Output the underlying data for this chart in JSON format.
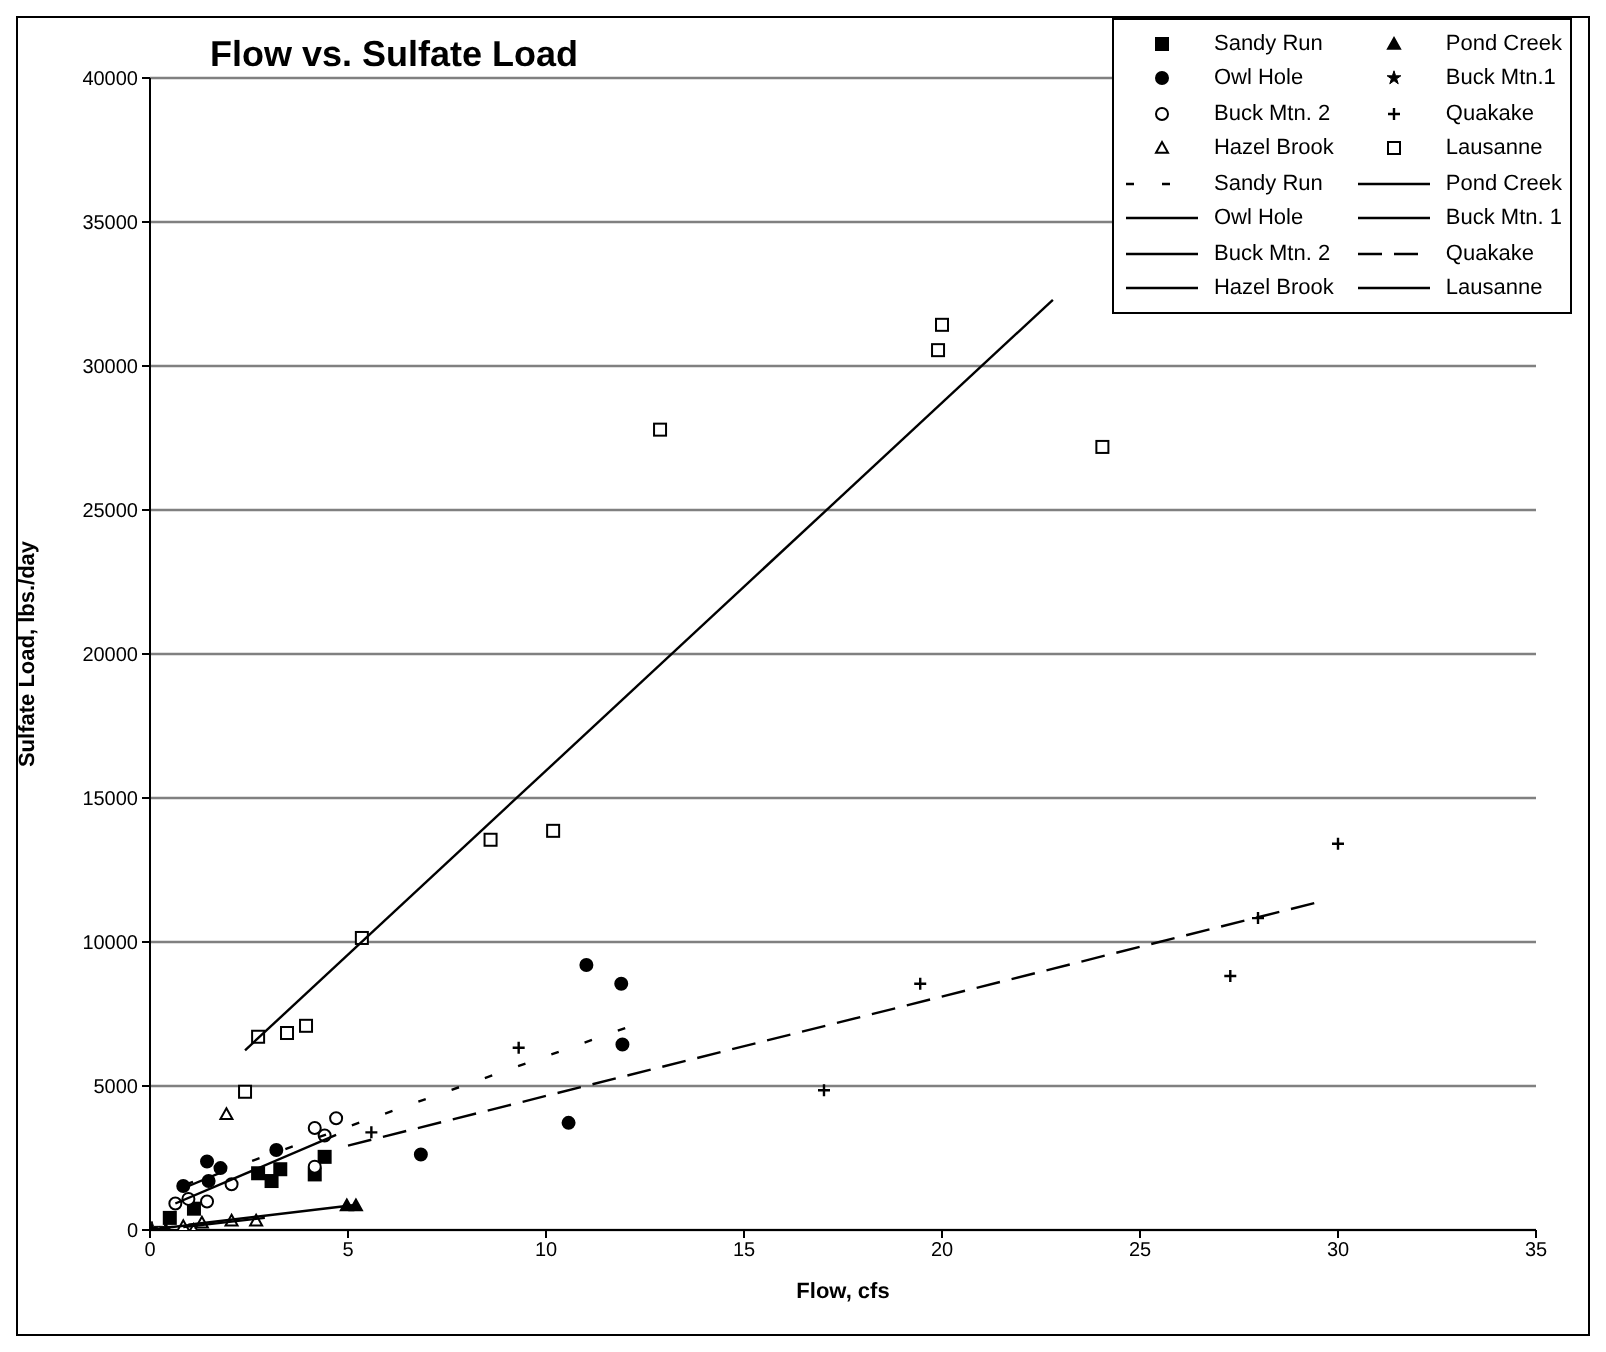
{
  "chart_data": {
    "type": "scatter",
    "title": "Flow vs. Sulfate Load",
    "xlabel": "Flow, cfs",
    "ylabel": "Sulfate Load, lbs./day",
    "xlim": [
      0,
      35
    ],
    "xticks": [
      0,
      5,
      10,
      15,
      20,
      25,
      30,
      35
    ],
    "ylim": [
      0,
      40000
    ],
    "yticks": [
      0,
      5000,
      10000,
      15000,
      20000,
      25000,
      30000,
      35000,
      40000
    ],
    "grid": "y",
    "legend": "top right",
    "series": [
      {
        "name": "Sandy Run",
        "marker": "square",
        "color": "#000000",
        "x": [
          0.5,
          1.11,
          2.73,
          3.07,
          3.29,
          4.16,
          4.41
        ],
        "values": [
          420,
          740,
          1970,
          1700,
          2110,
          1930,
          2540
        ]
      },
      {
        "name": "Pond Creek",
        "marker": "triangle",
        "color": "#000000",
        "x": [
          4.97,
          5.2
        ],
        "values": [
          850,
          850
        ]
      },
      {
        "name": "Owl Hole",
        "marker": "circle",
        "color": "#000000",
        "x": [
          0.84,
          1.44,
          1.48,
          1.78,
          3.19,
          6.84,
          10.57,
          11.02,
          11.9,
          11.93
        ],
        "values": [
          1530,
          2380,
          1700,
          2150,
          2780,
          2620,
          3720,
          9200,
          8550,
          6440
        ]
      },
      {
        "name": "Buck Mtn.1",
        "marker": "star",
        "color": "#000000",
        "x": [
          0.05,
          0.4
        ],
        "values": [
          50,
          50
        ]
      },
      {
        "name": "Buck Mtn. 2",
        "marker": "circle",
        "color": "#ffffff",
        "x": [
          0.64,
          0.97,
          1.44,
          2.06,
          4.16,
          4.16,
          4.41,
          4.7
        ],
        "values": [
          920,
          1080,
          990,
          1590,
          3540,
          2200,
          3280,
          3880
        ]
      },
      {
        "name": "Quakake",
        "marker": "cross",
        "color": "#000000",
        "x": [
          5.59,
          9.31,
          17.02,
          19.45,
          27.28,
          27.98,
          30.0
        ],
        "values": [
          3390,
          6330,
          4850,
          8550,
          8820,
          10830,
          13410
        ]
      },
      {
        "name": "Hazel Brook",
        "marker": "triangle",
        "color": "#ffffff",
        "x": [
          0.84,
          1.1,
          1.31,
          1.93,
          2.06,
          2.68
        ],
        "values": [
          130,
          0,
          250,
          4020,
          320,
          320
        ]
      },
      {
        "name": "Lausanne",
        "marker": "square",
        "color": "#ffffff",
        "x": [
          2.4,
          2.73,
          3.46,
          3.94,
          5.35,
          8.6,
          10.18,
          12.88,
          19.9,
          20.0,
          24.05
        ],
        "values": [
          4800,
          6710,
          6840,
          7090,
          10140,
          13550,
          13860,
          27790,
          30550,
          31430,
          27190
        ]
      },
      {
        "name": "Sandy Run",
        "type": "line",
        "line_style": "dotted",
        "color": "#000000",
        "x": [
          0.9,
          12
        ],
        "values": [
          1580,
          7010
        ]
      },
      {
        "name": "Pond Creek",
        "type": "line",
        "line_style": "solid",
        "color": "#000000",
        "x": [
          0.97,
          5.17
        ],
        "values": [
          180,
          870
        ]
      },
      {
        "name": "Owl Hole",
        "type": "line",
        "line_style": "solid",
        "color": "#000000",
        "x": [
          0.84,
          1.8
        ],
        "values": [
          1450,
          2000
        ]
      },
      {
        "name": "Buck Mtn. 1",
        "type": "line",
        "line_style": "solid",
        "color": "#000000",
        "x": [
          0,
          1.2
        ],
        "values": [
          20,
          200
        ]
      },
      {
        "name": "Buck Mtn. 2",
        "type": "line",
        "line_style": "solid",
        "color": "#000000",
        "x": [
          0.64,
          4.7
        ],
        "values": [
          920,
          3300
        ]
      },
      {
        "name": "Quakake",
        "type": "line",
        "line_style": "dashed",
        "color": "#000000",
        "x": [
          5,
          29.4
        ],
        "values": [
          2930,
          11350
        ]
      },
      {
        "name": "Hazel Brook",
        "type": "line",
        "line_style": "solid",
        "color": "#000000",
        "x": [
          0.84,
          2.9
        ],
        "values": [
          100,
          420
        ]
      },
      {
        "name": "Lausanne",
        "type": "line",
        "line_style": "solid",
        "color": "#000000",
        "x": [
          2.4,
          22.8
        ],
        "values": [
          6240,
          32300
        ]
      }
    ]
  }
}
